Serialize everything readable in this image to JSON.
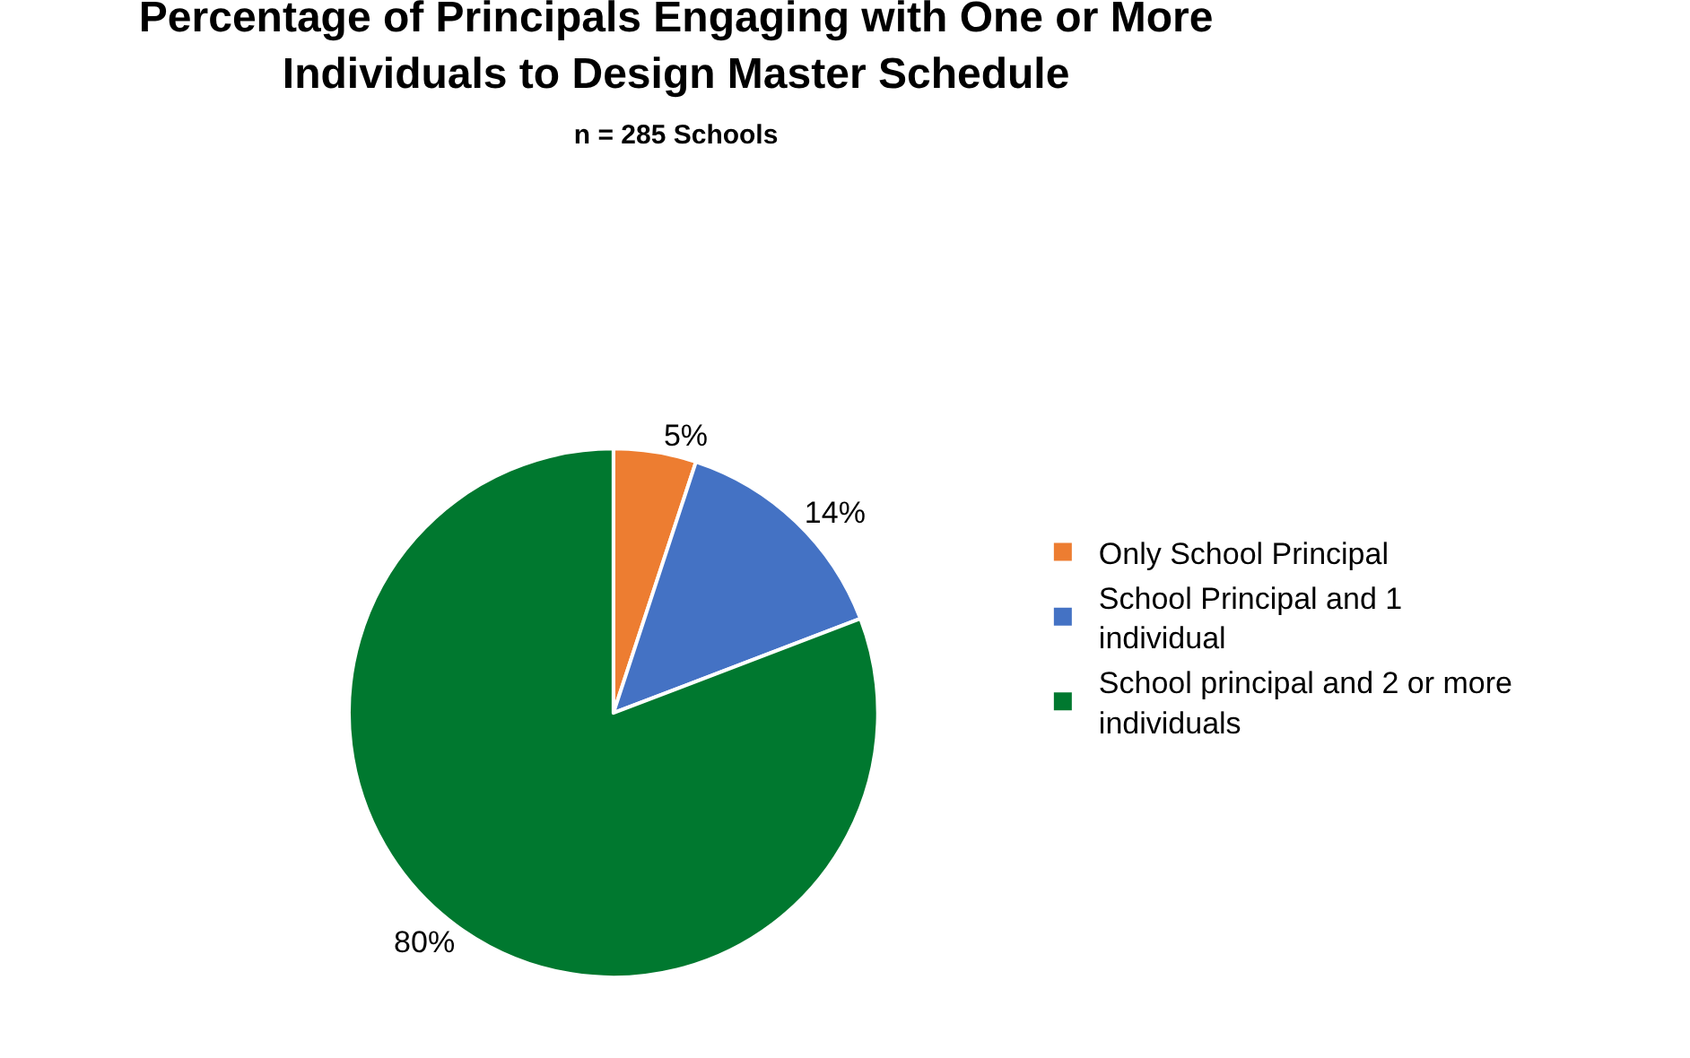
{
  "chart_data": {
    "type": "pie",
    "title": "Percentage of Principals Engaging with One or More Individuals to Design Master Schedule",
    "subtitle": "n = 285 Schools",
    "categories": [
      "Only School Principal",
      "School Principal and 1 individual",
      "School principal and 2 or more individuals"
    ],
    "values": [
      5,
      14,
      80
    ],
    "colors": [
      "#ed7d31",
      "#4472c4",
      "#00782f"
    ],
    "value_labels": [
      "5%",
      "14%",
      "80%"
    ],
    "legend": "right"
  }
}
